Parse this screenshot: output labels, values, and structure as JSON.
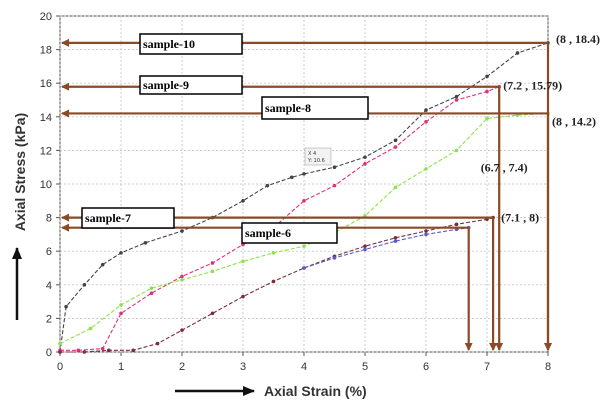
{
  "chart_data": {
    "type": "line",
    "xlabel": "Axial Strain (%)",
    "ylabel": "Axial Stress (kPa)",
    "xlim": [
      0,
      8
    ],
    "ylim": [
      0,
      20
    ],
    "xticks": [
      "0",
      "1",
      "2",
      "3",
      "4",
      "5",
      "6",
      "7",
      "8"
    ],
    "yticks": [
      "0",
      "2",
      "4",
      "6",
      "8",
      "10",
      "12",
      "14",
      "16",
      "18",
      "20"
    ],
    "grid": true,
    "series": [
      {
        "name": "sample-10",
        "color": "#444444",
        "x": [
          0,
          0.1,
          0.4,
          0.7,
          1.0,
          1.4,
          2.0,
          2.5,
          3.0,
          3.4,
          3.8,
          4.0,
          4.5,
          5.0,
          5.5,
          6.0,
          6.5,
          7.0,
          7.5,
          8.0
        ],
        "y": [
          0,
          2.7,
          4.0,
          5.2,
          5.9,
          6.5,
          7.2,
          8.0,
          9.0,
          9.9,
          10.4,
          10.6,
          11.0,
          11.6,
          12.6,
          14.4,
          15.2,
          16.4,
          17.8,
          18.4
        ]
      },
      {
        "name": "sample-9",
        "color": "#e0307a",
        "x": [
          0,
          0.3,
          0.7,
          1.0,
          1.5,
          2.0,
          2.5,
          3.0,
          3.5,
          4.0,
          4.5,
          5.0,
          5.5,
          6.0,
          6.5,
          7.0,
          7.2
        ],
        "y": [
          0.1,
          0.1,
          0.2,
          2.3,
          3.5,
          4.5,
          5.3,
          6.4,
          7.4,
          9.0,
          9.9,
          11.2,
          12.2,
          13.7,
          15.0,
          15.5,
          15.79
        ]
      },
      {
        "name": "sample-8",
        "color": "#8ee34a",
        "x": [
          0,
          0.5,
          1.0,
          1.5,
          2.0,
          2.5,
          3.0,
          3.5,
          4.0,
          4.5,
          5.0,
          5.5,
          6.0,
          6.5,
          7.0,
          7.5,
          8.0
        ],
        "y": [
          0.5,
          1.4,
          2.8,
          3.8,
          4.3,
          4.8,
          5.4,
          5.9,
          6.3,
          7.1,
          8.1,
          9.8,
          10.9,
          12.0,
          13.9,
          14.1,
          14.2
        ]
      },
      {
        "name": "sample-7",
        "color": "#7a2d3c",
        "x": [
          0,
          0.4,
          0.8,
          1.2,
          1.6,
          2.0,
          2.5,
          3.0,
          3.5,
          4.0,
          4.5,
          5.0,
          5.5,
          6.0,
          6.5,
          7.0,
          7.1
        ],
        "y": [
          0,
          0,
          0.1,
          0.1,
          0.5,
          1.3,
          2.3,
          3.3,
          4.2,
          5.0,
          5.7,
          6.3,
          6.8,
          7.2,
          7.6,
          7.9,
          8.0
        ]
      },
      {
        "name": "sample-6",
        "color": "#5a5ac8",
        "x": [
          4.0,
          4.5,
          5.0,
          5.5,
          6.0,
          6.5,
          6.7
        ],
        "y": [
          5.0,
          5.6,
          6.1,
          6.6,
          7.0,
          7.3,
          7.4
        ]
      }
    ],
    "annotations": [
      {
        "text": "(8 , 18.4)",
        "x": 8,
        "y": 18.4
      },
      {
        "text": "(7.2 , 15.79)",
        "x": 7.2,
        "y": 15.79
      },
      {
        "text": "(8 , 14.2)",
        "x": 8,
        "y": 14.2
      },
      {
        "text": "(6.7 , 7.4)",
        "x": 6.7,
        "y": 7.4
      },
      {
        "text": "(7.1 , 8)",
        "x": 7.1,
        "y": 8
      }
    ],
    "tooltip": {
      "line1": "X 4",
      "line2": "Y: 10.6"
    }
  },
  "colors": {
    "arrow": "#8b4a25",
    "grid": "#bbbbbb"
  }
}
